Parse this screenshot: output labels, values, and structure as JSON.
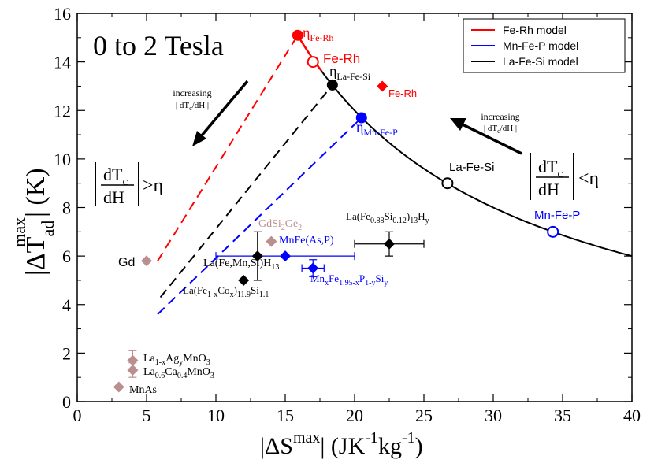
{
  "chart_data": {
    "type": "scatter",
    "title": "0 to 2 Tesla",
    "xlabel": {
      "pre": "|ΔS",
      "sup": "max",
      "post": "| (JK",
      "sup2": "-1",
      "mid": "kg",
      "sup3": "-1",
      "end": ")"
    },
    "ylabel": {
      "pre": "|ΔT",
      "sub": "ad",
      "sup": "max",
      "post": "| (K)"
    },
    "xlim": [
      0,
      40
    ],
    "ylim": [
      0,
      16
    ],
    "xticks": [
      0,
      5,
      10,
      15,
      20,
      25,
      30,
      35,
      40
    ],
    "yticks": [
      0,
      2,
      4,
      6,
      8,
      10,
      12,
      14,
      16
    ],
    "colors": {
      "fe_rh": "#ff0000",
      "mn_fe_p": "#0000ff",
      "la_fe_si": "#000000",
      "other": "#bc8f8f",
      "frame": "#000000"
    },
    "legend": {
      "position": "top-right",
      "entries": [
        {
          "label": "Fe-Rh model",
          "color": "#ff0000"
        },
        {
          "label": "Mn-Fe-P model",
          "color": "#0000ff"
        },
        {
          "label": "La-Fe-Si model",
          "color": "#000000"
        }
      ]
    },
    "model_curve": {
      "coefficient": 240.0,
      "x_range": [
        15.8,
        40
      ]
    },
    "model_lines": [
      {
        "name": "Fe-Rh model",
        "color": "#ff0000",
        "x": [
          5.8,
          15.9
        ],
        "y": [
          5.8,
          15.1
        ]
      },
      {
        "name": "La-Fe-Si model",
        "color": "#000000",
        "x": [
          6.0,
          18.4
        ],
        "y": [
          4.3,
          13.05
        ]
      },
      {
        "name": "Mn-Fe-P model",
        "color": "#0000ff",
        "x": [
          5.8,
          20.5
        ],
        "y": [
          3.6,
          11.7
        ]
      }
    ],
    "eta_points": [
      {
        "name": "eta-fe-rh",
        "x": 15.9,
        "y": 15.1,
        "color": "#ff0000"
      },
      {
        "name": "eta-la-fe-si",
        "x": 18.4,
        "y": 13.05,
        "color": "#000000"
      },
      {
        "name": "eta-mn-fe-p",
        "x": 20.5,
        "y": 11.7,
        "color": "#0000ff"
      }
    ],
    "open_points": [
      {
        "name": "fe-rh-open",
        "x": 17.0,
        "y": 14.0,
        "color": "#ff0000"
      },
      {
        "name": "la-fe-si-open",
        "x": 26.7,
        "y": 9.0,
        "color": "#000000"
      },
      {
        "name": "mn-fe-p-open",
        "x": 34.3,
        "y": 7.0,
        "color": "#0000ff"
      }
    ],
    "materials": [
      {
        "name": "Fe-Rh",
        "x": 22.0,
        "y": 13.0,
        "color": "#ff0000",
        "xerr": 0,
        "yerr": 0
      },
      {
        "name": "Gd",
        "x": 5.0,
        "y": 5.8,
        "color": "#bc8f8f",
        "xerr": 0,
        "yerr": 0
      },
      {
        "name": "GdSi2Ge2",
        "x": 14.0,
        "y": 6.6,
        "color": "#bc8f8f",
        "xerr": 0,
        "yerr": 0
      },
      {
        "name": "MnFe(As,P)",
        "x": 15.0,
        "y": 6.0,
        "color": "#0000ff",
        "xerr": 5.0,
        "yerr": 0
      },
      {
        "name": "MnxFe1.95-xP1-ySiy",
        "x": 17.0,
        "y": 5.5,
        "color": "#0000ff",
        "xerr": 0.8,
        "yerr": 0.35
      },
      {
        "name": "La(Fe0.88Si0.12)13Hy",
        "x": 22.5,
        "y": 6.5,
        "color": "#000000",
        "xerr": 2.5,
        "yerr": 0.5
      },
      {
        "name": "La(Fe,Mn,Si)H13",
        "x": 13.0,
        "y": 6.0,
        "color": "#000000",
        "xerr": 0,
        "yerr": 1.0
      },
      {
        "name": "La(Fe1-xCox)11.9Si1.1",
        "x": 12.0,
        "y": 5.0,
        "color": "#000000",
        "xerr": 0,
        "yerr": 0
      },
      {
        "name": "La1-xAgyMnO3",
        "x": 4.0,
        "y": 1.7,
        "color": "#bc8f8f",
        "xerr": 0,
        "yerr": 0.4
      },
      {
        "name": "La0.6Ca0.4MnO3",
        "x": 4.0,
        "y": 1.3,
        "color": "#bc8f8f",
        "xerr": 0,
        "yerr": 0.3
      },
      {
        "name": "MnAs",
        "x": 3.0,
        "y": 0.6,
        "color": "#bc8f8f",
        "xerr": 0,
        "yerr": 0
      }
    ],
    "labels": {
      "eta_fe_rh": {
        "base": "η",
        "sub": "Fe-Rh"
      },
      "fe_rh_model": "Fe-Rh",
      "eta_la_fe_si": {
        "base": "η",
        "sub": "La-Fe-Si"
      },
      "fe_rh_point": "Fe-Rh",
      "eta_mn_fe_p": {
        "base": "η",
        "sub": "Mn-Fe-P"
      },
      "la_fe_si_model": "La-Fe-Si",
      "mn_fe_p_model": "Mn-Fe-P",
      "gd": "Gd",
      "gdsige": [
        "GdSi",
        "2",
        "Ge",
        "2"
      ],
      "mnfeasp": "MnFe(As,P)",
      "lafesih": [
        "La(Fe",
        "0.88",
        "Si",
        "0.12",
        ")",
        "13",
        "H",
        "y"
      ],
      "lafemnsih": [
        "La(Fe,Mn,Si)H",
        "13"
      ],
      "mnfep": [
        "Mn",
        "x",
        "Fe",
        "1.95-x",
        "P",
        "1-y",
        "Si",
        "y"
      ],
      "lafecosi": [
        "La(Fe",
        "1-x",
        "Co",
        "x",
        ")",
        "11.9",
        "Si",
        "1.1"
      ],
      "laagmno": [
        "La",
        "1-x",
        "Ag",
        "y",
        "MnO",
        "3"
      ],
      "lacamno": [
        "La",
        "0.6",
        "Ca",
        "0.4",
        "MnO",
        "3"
      ],
      "mnas": "MnAs"
    },
    "annotations": {
      "increasing_left": {
        "line1": "increasing",
        "line2": [
          "| dT",
          "c",
          "/dH |"
        ]
      },
      "increasing_right": {
        "line1": "increasing",
        "line2": [
          "| dT",
          "c",
          "/dH |"
        ]
      },
      "ineq_left": {
        "num": [
          "dT",
          "c"
        ],
        "den": "dH",
        "op": ">",
        "rhs": "η"
      },
      "ineq_right": {
        "num": [
          "dT",
          "c"
        ],
        "den": "dH",
        "op": "<",
        "rhs": "η"
      }
    }
  }
}
